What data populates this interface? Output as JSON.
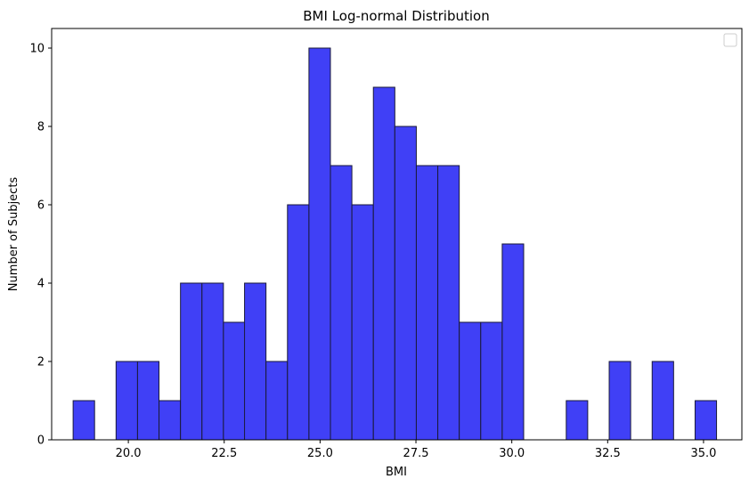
{
  "chart_data": {
    "type": "bar",
    "title": "BMI Log-normal Distribution",
    "xlabel": "BMI",
    "ylabel": "Number of Subjects",
    "xlim": [
      18.0,
      36.0
    ],
    "ylim": [
      0,
      10.5
    ],
    "bin_width": 0.5595,
    "bins": [
      {
        "left": 18.56,
        "count": 1
      },
      {
        "left": 19.12,
        "count": 0
      },
      {
        "left": 19.68,
        "count": 2
      },
      {
        "left": 20.24,
        "count": 2
      },
      {
        "left": 20.8,
        "count": 1
      },
      {
        "left": 21.36,
        "count": 4
      },
      {
        "left": 21.92,
        "count": 4
      },
      {
        "left": 22.48,
        "count": 3
      },
      {
        "left": 23.03,
        "count": 4
      },
      {
        "left": 23.59,
        "count": 2
      },
      {
        "left": 24.15,
        "count": 6
      },
      {
        "left": 24.71,
        "count": 10
      },
      {
        "left": 25.27,
        "count": 7
      },
      {
        "left": 25.83,
        "count": 6
      },
      {
        "left": 26.39,
        "count": 9
      },
      {
        "left": 26.95,
        "count": 8
      },
      {
        "left": 27.51,
        "count": 7
      },
      {
        "left": 28.07,
        "count": 7
      },
      {
        "left": 28.63,
        "count": 3
      },
      {
        "left": 29.19,
        "count": 3
      },
      {
        "left": 29.75,
        "count": 5
      },
      {
        "left": 30.31,
        "count": 0
      },
      {
        "left": 30.87,
        "count": 0
      },
      {
        "left": 31.42,
        "count": 1
      },
      {
        "left": 31.98,
        "count": 0
      },
      {
        "left": 32.54,
        "count": 2
      },
      {
        "left": 33.1,
        "count": 0
      },
      {
        "left": 33.66,
        "count": 2
      },
      {
        "left": 34.22,
        "count": 0
      },
      {
        "left": 34.78,
        "count": 1
      }
    ],
    "x_ticks": [
      20.0,
      22.5,
      25.0,
      27.5,
      30.0,
      32.5,
      35.0
    ],
    "x_tick_labels": [
      "20.0",
      "22.5",
      "25.0",
      "27.5",
      "30.0",
      "32.5",
      "35.0"
    ],
    "y_ticks": [
      0,
      2,
      4,
      6,
      8,
      10
    ],
    "y_tick_labels": [
      "0",
      "2",
      "4",
      "6",
      "8",
      "10"
    ],
    "bar_color": "#4040f6",
    "bar_edge_color": "#1a1a3a",
    "legend": {
      "position": "top-right",
      "entries": []
    },
    "grid": false
  }
}
